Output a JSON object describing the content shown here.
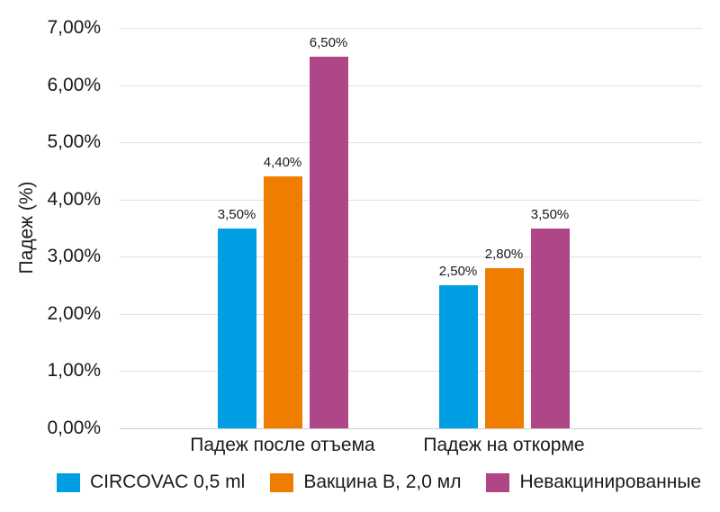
{
  "chart_data": {
    "type": "bar",
    "title": "",
    "xlabel": "",
    "ylabel": "Падеж (%)",
    "categories": [
      "Падеж после отъема",
      "Падеж на откорме"
    ],
    "series": [
      {
        "name": "CIRCOVAC 0,5 ml",
        "color": "#009EE2",
        "values": [
          3.5,
          2.5
        ],
        "value_labels": [
          "3,50%",
          "2,50%"
        ]
      },
      {
        "name": "Вакцина B, 2,0 мл",
        "color": "#EF7D00",
        "values": [
          4.4,
          2.8
        ],
        "value_labels": [
          "4,40%",
          "2,80%"
        ]
      },
      {
        "name": "Невакцинированные",
        "color": "#AE4687",
        "values": [
          6.5,
          3.5
        ],
        "value_labels": [
          "6,50%",
          "3,50%"
        ]
      }
    ],
    "ylim": [
      0,
      7
    ],
    "ytick_step": 1,
    "ytick_labels": [
      "0,00%",
      "1,00%",
      "2,00%",
      "3,00%",
      "4,00%",
      "5,00%",
      "6,00%",
      "7,00%"
    ],
    "grid": true,
    "legend_position": "bottom",
    "colors": {
      "text": "#1a1a1a",
      "gridline": "#e2e2e2",
      "baseline": "#cfcfcf",
      "background": "#ffffff"
    }
  }
}
